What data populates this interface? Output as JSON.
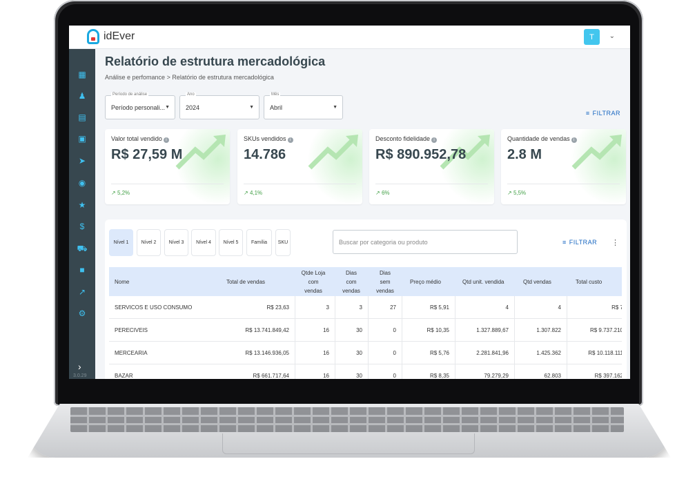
{
  "app": {
    "name": "idEver",
    "user_initial": "T",
    "version": "3.0.29"
  },
  "page": {
    "title": "Relatório de estrutura mercadológica",
    "breadcrumb": {
      "parent": "Análise e perfomance",
      "separator": ">",
      "current": "Relatório de estrutura mercadológica"
    }
  },
  "filters": {
    "periodo": {
      "label": "Período de análise",
      "value": "Período personali..."
    },
    "ano": {
      "label": "Ano",
      "value": "2024"
    },
    "mes": {
      "label": "Mês",
      "value": "Abril"
    },
    "filter_button": "FILTRAR"
  },
  "kpis": [
    {
      "title": "Valor total vendido",
      "value": "R$ 27,59 M",
      "trend": "5,2%"
    },
    {
      "title": "SKUs vendidos",
      "value": "14.786",
      "trend": "4,1%"
    },
    {
      "title": "Desconto fidelidade",
      "value": "R$ 890.952,78",
      "trend": "6%"
    },
    {
      "title": "Quantidade de vendas",
      "value": "2.8 M",
      "trend": "5,5%"
    }
  ],
  "levels": [
    "Nível 1",
    "Nível 2",
    "Nível 3",
    "Nível 4",
    "Nível 5",
    "Família",
    "SKU"
  ],
  "search": {
    "placeholder": "Buscar por categoria ou produto"
  },
  "panel_filter_button": "FILTRAR",
  "table": {
    "headers": {
      "nome": "Nome",
      "total_vendas": "Total de vendas",
      "qtde_loja_a": "Qtde Loja",
      "qtde_loja_b": "com",
      "qtde_loja_c": "vendas",
      "dias_com_a": "Dias",
      "dias_com_b": "com",
      "dias_com_c": "vendas",
      "dias_sem_a": "Dias",
      "dias_sem_b": "sem",
      "dias_sem_c": "vendas",
      "preco_medio": "Preço médio",
      "qtd_unit": "Qtd unit. vendida",
      "qtd_vendas": "Qtd vendas",
      "total_custo": "Total custo"
    },
    "rows": [
      {
        "nome": "SERVICOS E USO CONSUMO",
        "total": "R$ 23,63",
        "lojas": "3",
        "dias_com": "3",
        "dias_sem": "27",
        "preco": "R$ 5,91",
        "unit": "4",
        "vendas": "4",
        "custo": "R$ 7"
      },
      {
        "nome": "PERECIVEIS",
        "total": "R$ 13.741.849,42",
        "lojas": "16",
        "dias_com": "30",
        "dias_sem": "0",
        "preco": "R$ 10,35",
        "unit": "1.327.889,67",
        "vendas": "1.307.822",
        "custo": "R$ 9.737.210"
      },
      {
        "nome": "MERCEARIA",
        "total": "R$ 13.146.936,05",
        "lojas": "16",
        "dias_com": "30",
        "dias_sem": "0",
        "preco": "R$ 5,76",
        "unit": "2.281.841,96",
        "vendas": "1.425.362",
        "custo": "R$ 10.118.111"
      },
      {
        "nome": "BAZAR",
        "total": "R$ 661.717,64",
        "lojas": "16",
        "dias_com": "30",
        "dias_sem": "0",
        "preco": "R$ 8,35",
        "unit": "79.279,29",
        "vendas": "62.803",
        "custo": "R$ 397.162"
      }
    ]
  },
  "colors": {
    "sidebar": "#37474f",
    "accent": "#1aa8e0",
    "trend_up": "#43a047",
    "header_row": "#dde9fb"
  }
}
